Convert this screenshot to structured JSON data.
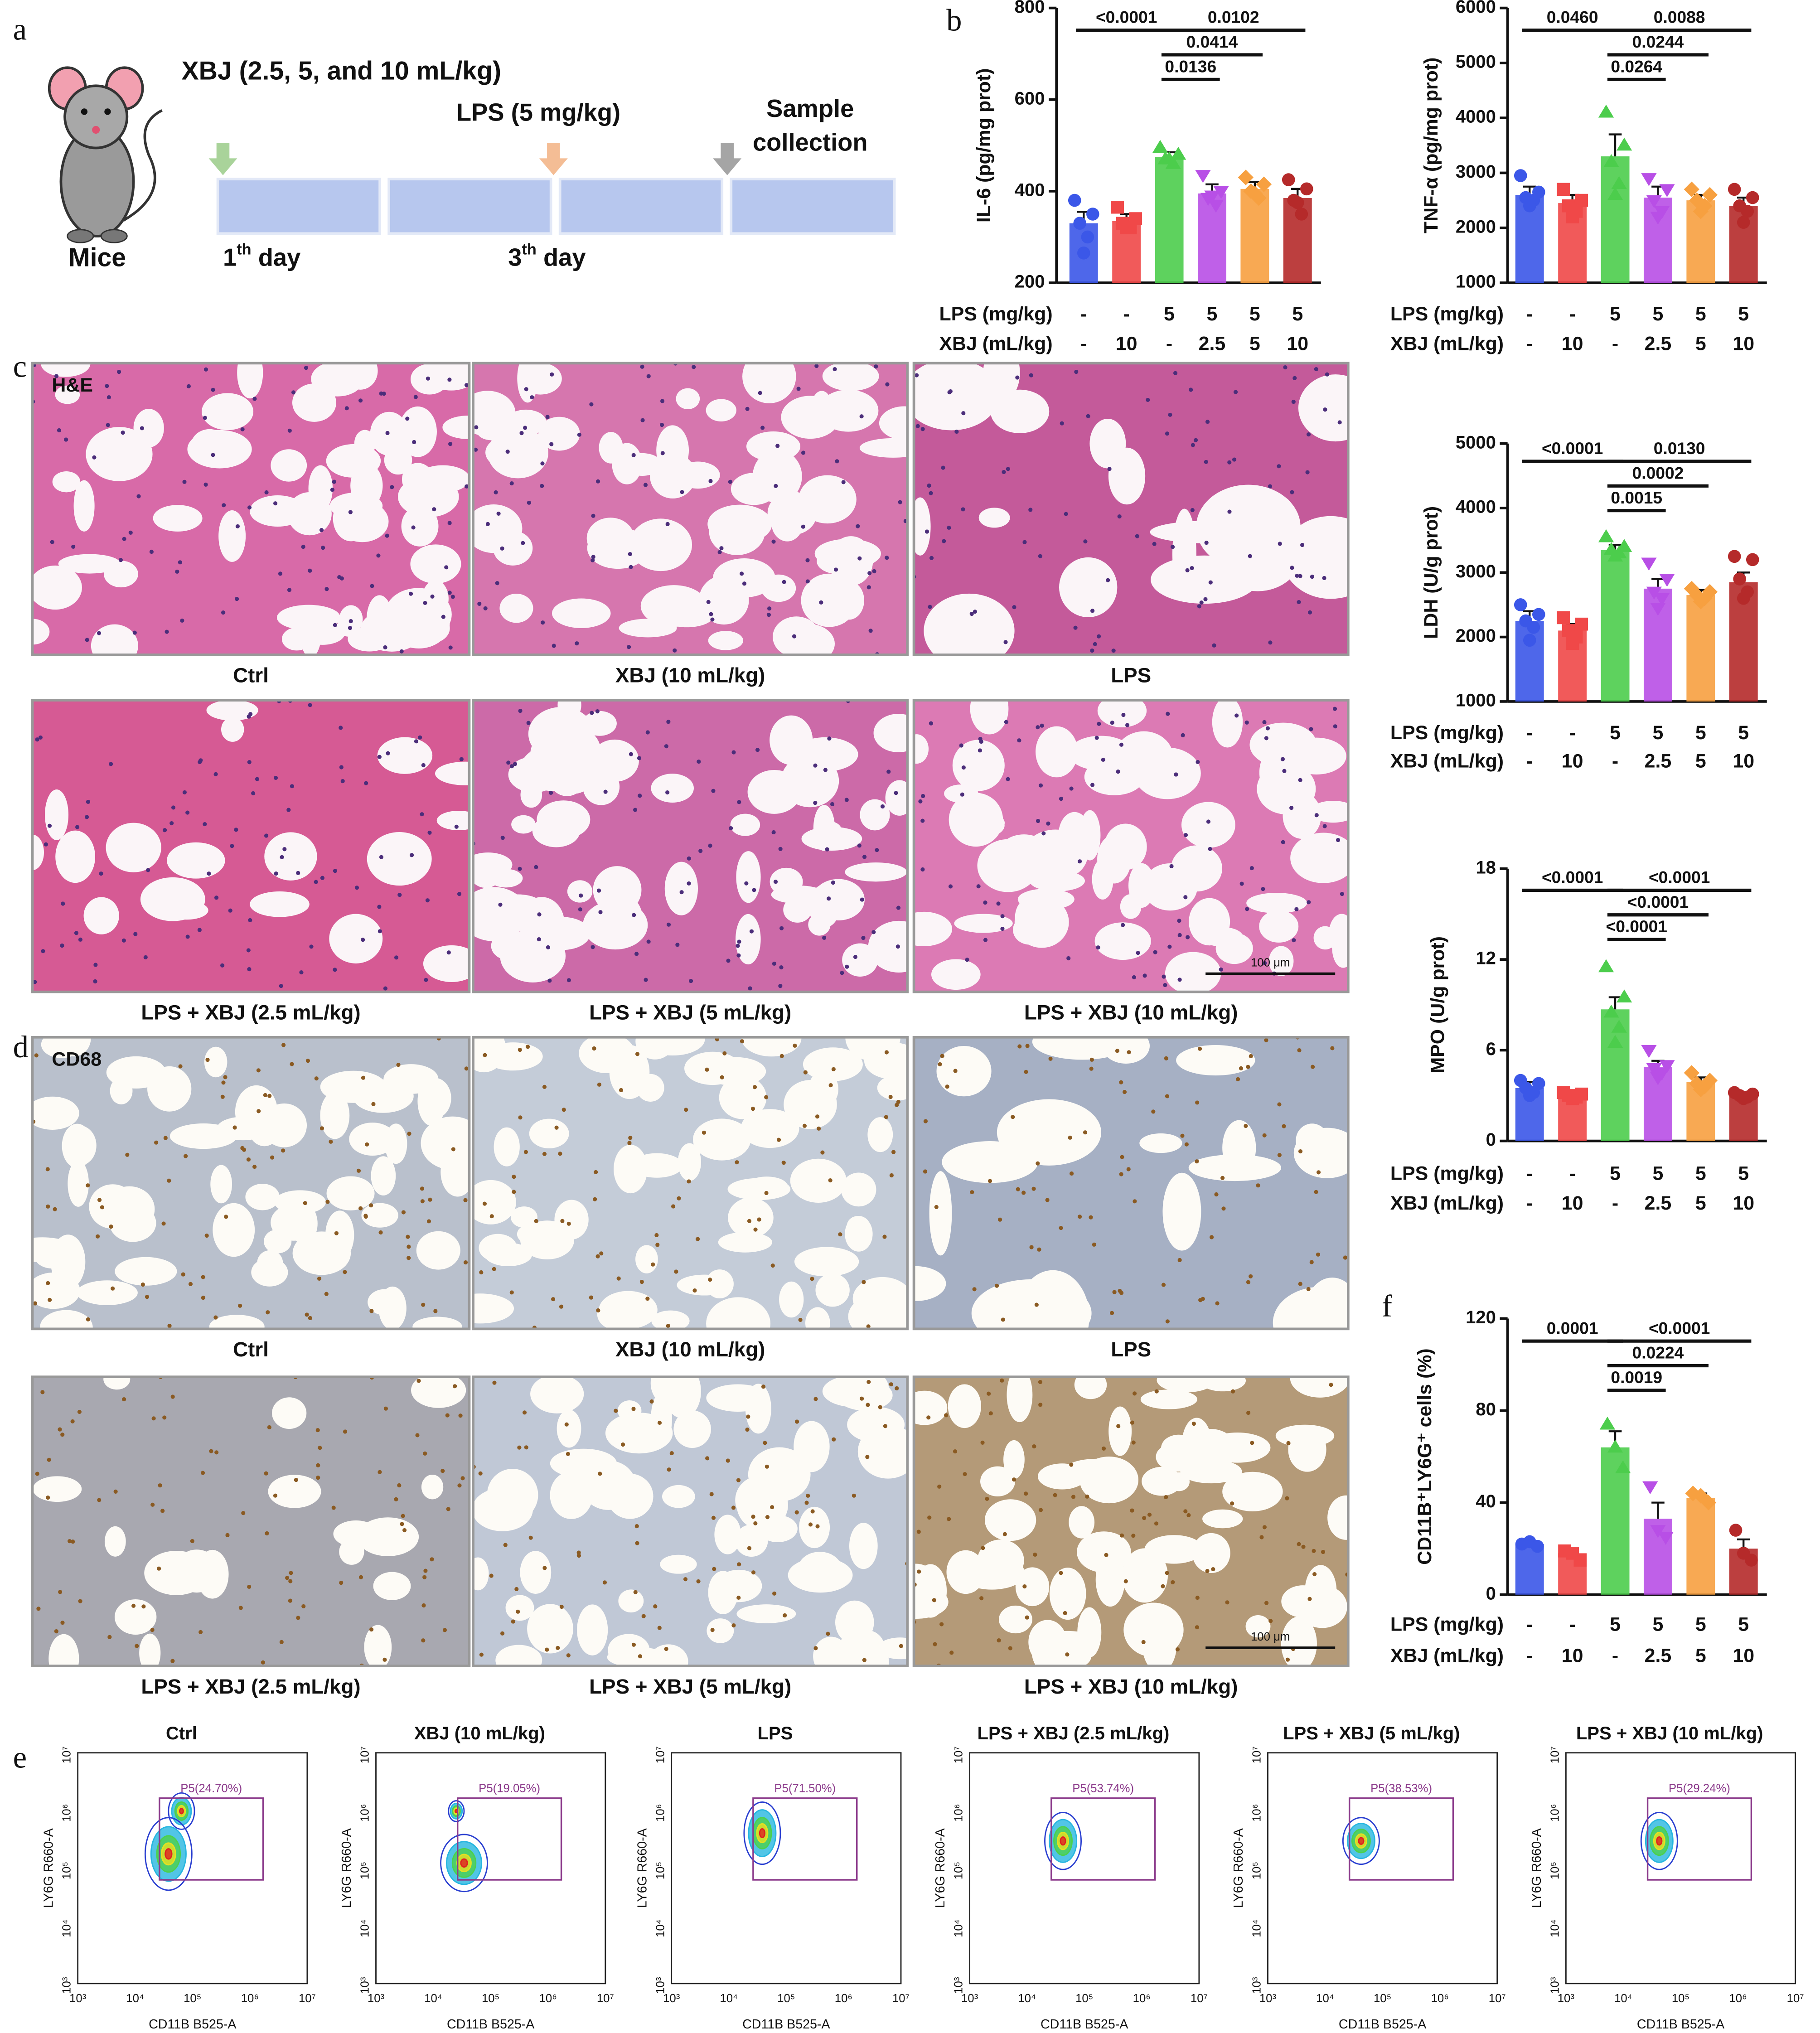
{
  "panels": [
    "a",
    "b",
    "c",
    "d",
    "e",
    "f"
  ],
  "timeline": {
    "xbj": "XBJ (2.5, 5, and 10 mL/kg)",
    "lps": "LPS (5 mg/kg)",
    "sample": [
      "Sample",
      "collection"
    ],
    "mice": "Mice",
    "days": [
      {
        "n": "1",
        "sup": "th",
        "rest": " day"
      },
      {
        "n": "3",
        "sup": "th",
        "rest": " day"
      }
    ]
  },
  "he": {
    "label": "H&E",
    "captions": [
      "Ctrl",
      "XBJ (10 mL/kg)",
      "LPS",
      "LPS + XBJ (2.5 mL/kg)",
      "LPS + XBJ (5 mL/kg)",
      "LPS + XBJ (10 mL/kg)"
    ],
    "scale": "100 μm"
  },
  "cd68": {
    "label": "CD68",
    "captions": [
      "Ctrl",
      "XBJ (10 mL/kg)",
      "LPS",
      "LPS + XBJ (2.5 mL/kg)",
      "LPS + XBJ (5 mL/kg)",
      "LPS + XBJ (10 mL/kg)"
    ],
    "scale": "100 μm"
  },
  "flow": {
    "x_label": "CD11B B525-A",
    "y_label": "LY6G R660-A",
    "ticks": [
      "10³",
      "10⁴",
      "10⁵",
      "10⁶",
      "10⁷"
    ],
    "plots": [
      {
        "title": "Ctrl",
        "gate": "P5(24.70%)"
      },
      {
        "title": "XBJ (10 mL/kg)",
        "gate": "P5(19.05%)"
      },
      {
        "title": "LPS",
        "gate": "P5(71.50%)"
      },
      {
        "title": "LPS + XBJ (2.5 mL/kg)",
        "gate": "P5(53.74%)"
      },
      {
        "title": "LPS + XBJ (5 mL/kg)",
        "gate": "P5(38.53%)"
      },
      {
        "title": "LPS + XBJ (10 mL/kg)",
        "gate": "P5(29.24%)"
      }
    ]
  },
  "chart_data": [
    {
      "type": "bar",
      "y_label": "IL-6 (pg/mg prot)",
      "ylim": [
        200,
        800
      ],
      "yticks": [
        200,
        400,
        600,
        800
      ],
      "row_labels": [
        "LPS (mg/kg)",
        "XBJ (mL/kg)"
      ],
      "rows": [
        [
          "-",
          "-",
          "5",
          "5",
          "5",
          "5"
        ],
        [
          "-",
          "10",
          "-",
          "2.5",
          "5",
          "10"
        ]
      ],
      "colors": [
        "#3b57e8",
        "#f04848",
        "#4ccd4c",
        "#b84fe6",
        "#f7a040",
        "#b52a2a"
      ],
      "values": [
        330,
        335,
        475,
        395,
        405,
        385
      ],
      "errors": [
        25,
        15,
        10,
        20,
        15,
        20
      ],
      "points": [
        [
          380,
          350,
          330,
          300,
          265
        ],
        [
          365,
          340,
          330,
          320,
          320
        ],
        [
          495,
          480,
          470,
          460,
          470
        ],
        [
          435,
          400,
          385,
          370,
          390
        ],
        [
          430,
          415,
          400,
          385,
          395
        ],
        [
          425,
          405,
          380,
          350,
          375
        ]
      ],
      "comparisons": [
        {
          "groups": [
            2,
            3
          ],
          "label": "0.0136"
        },
        {
          "groups": [
            2,
            4
          ],
          "label": "0.0414"
        },
        {
          "groups": [
            2,
            5
          ],
          "label": "0.0102"
        },
        {
          "groups": [
            0,
            2
          ],
          "label": "<0.0001"
        }
      ]
    },
    {
      "type": "bar",
      "y_label": "TNF-α (pg/mg prot)",
      "ylim": [
        1000,
        6000
      ],
      "yticks": [
        1000,
        2000,
        3000,
        4000,
        5000,
        6000
      ],
      "row_labels": [
        "LPS (mg/kg)",
        "XBJ (mL/kg)"
      ],
      "rows": [
        [
          "-",
          "-",
          "5",
          "5",
          "5",
          "5"
        ],
        [
          "-",
          "10",
          "-",
          "2.5",
          "5",
          "10"
        ]
      ],
      "colors": [
        "#3b57e8",
        "#f04848",
        "#4ccd4c",
        "#b84fe6",
        "#f7a040",
        "#b52a2a"
      ],
      "values": [
        2600,
        2450,
        3300,
        2550,
        2500,
        2400
      ],
      "errors": [
        150,
        150,
        400,
        200,
        100,
        150
      ],
      "points": [
        [
          2950,
          2650,
          2550,
          2500,
          2400
        ],
        [
          2700,
          2500,
          2400,
          2300,
          2200
        ],
        [
          4100,
          3500,
          3200,
          2800,
          2600
        ],
        [
          2900,
          2700,
          2500,
          2300,
          2200
        ],
        [
          2700,
          2600,
          2500,
          2400,
          2300
        ],
        [
          2700,
          2550,
          2400,
          2300,
          2100
        ]
      ],
      "comparisons": [
        {
          "groups": [
            2,
            3
          ],
          "label": "0.0264"
        },
        {
          "groups": [
            2,
            4
          ],
          "label": "0.0244"
        },
        {
          "groups": [
            2,
            5
          ],
          "label": "0.0088"
        },
        {
          "groups": [
            0,
            2
          ],
          "label": "0.0460"
        }
      ]
    },
    {
      "type": "bar",
      "y_label": "LDH (U/g prot)",
      "ylim": [
        1000,
        5000
      ],
      "yticks": [
        1000,
        2000,
        3000,
        4000,
        5000
      ],
      "row_labels": [
        "LPS (mg/kg)",
        "XBJ (mL/kg)"
      ],
      "rows": [
        [
          "-",
          "-",
          "5",
          "5",
          "5",
          "5"
        ],
        [
          "-",
          "10",
          "-",
          "2.5",
          "5",
          "10"
        ]
      ],
      "colors": [
        "#3b57e8",
        "#f04848",
        "#4ccd4c",
        "#b84fe6",
        "#f7a040",
        "#b52a2a"
      ],
      "values": [
        2250,
        2100,
        3350,
        2750,
        2650,
        2850
      ],
      "errors": [
        150,
        100,
        80,
        150,
        80,
        150
      ],
      "points": [
        [
          2500,
          2350,
          2250,
          2150,
          1950
        ],
        [
          2300,
          2200,
          2100,
          2000,
          1900
        ],
        [
          3550,
          3400,
          3350,
          3300,
          3250
        ],
        [
          3150,
          2900,
          2700,
          2600,
          2450
        ],
        [
          2750,
          2700,
          2650,
          2600,
          2550
        ],
        [
          3250,
          3200,
          2900,
          2700,
          2600
        ]
      ],
      "comparisons": [
        {
          "groups": [
            2,
            3
          ],
          "label": "0.0015"
        },
        {
          "groups": [
            2,
            4
          ],
          "label": "0.0002"
        },
        {
          "groups": [
            2,
            5
          ],
          "label": "0.0130"
        },
        {
          "groups": [
            0,
            2
          ],
          "label": "<0.0001"
        }
      ]
    },
    {
      "type": "bar",
      "y_label": "MPO (U/g prot)",
      "ylim": [
        0,
        18
      ],
      "yticks": [
        0,
        6,
        12,
        18
      ],
      "row_labels": [
        "LPS (mg/kg)",
        "XBJ (mL/kg)"
      ],
      "rows": [
        [
          "-",
          "-",
          "5",
          "5",
          "5",
          "5"
        ],
        [
          "-",
          "10",
          "-",
          "2.5",
          "5",
          "10"
        ]
      ],
      "colors": [
        "#3b57e8",
        "#f04848",
        "#4ccd4c",
        "#b84fe6",
        "#f7a040",
        "#b52a2a"
      ],
      "values": [
        3.5,
        3.0,
        8.7,
        4.9,
        3.9,
        3.0
      ],
      "errors": [
        0.4,
        0.2,
        0.8,
        0.4,
        0.3,
        0.1
      ],
      "points": [
        [
          4,
          3.8,
          3.5,
          3.2,
          3.0
        ],
        [
          3.2,
          3.1,
          3.0,
          2.9,
          2.8
        ],
        [
          11.5,
          9.5,
          8.5,
          7.5,
          6.5
        ],
        [
          6,
          5,
          4.8,
          4.5,
          4.2
        ],
        [
          4.5,
          4,
          3.8,
          3.6,
          3.4
        ],
        [
          3.2,
          3.1,
          3,
          2.9,
          2.8
        ]
      ],
      "comparisons": [
        {
          "groups": [
            2,
            3
          ],
          "label": "<0.0001"
        },
        {
          "groups": [
            2,
            4
          ],
          "label": "<0.0001"
        },
        {
          "groups": [
            2,
            5
          ],
          "label": "<0.0001"
        },
        {
          "groups": [
            0,
            2
          ],
          "label": "<0.0001"
        }
      ]
    },
    {
      "type": "bar",
      "y_label": "CD11B⁺LY6G⁺ cells (%)",
      "ylim": [
        0,
        120
      ],
      "yticks": [
        0,
        40,
        80,
        120
      ],
      "row_labels": [
        "LPS (mg/kg)",
        "XBJ (mL/kg)"
      ],
      "rows": [
        [
          "-",
          "-",
          "5",
          "5",
          "5",
          "5"
        ],
        [
          "-",
          "10",
          "-",
          "2.5",
          "5",
          "10"
        ]
      ],
      "colors": [
        "#3b57e8",
        "#f04848",
        "#4ccd4c",
        "#b84fe6",
        "#f7a040",
        "#b52a2a"
      ],
      "values": [
        22,
        18,
        64,
        33,
        42,
        20
      ],
      "errors": [
        1,
        2,
        7,
        7,
        2,
        4
      ],
      "points": [
        [
          22,
          23,
          21
        ],
        [
          19,
          18,
          15
        ],
        [
          74,
          64,
          55
        ],
        [
          47,
          28,
          25
        ],
        [
          44,
          43,
          40
        ],
        [
          28,
          18,
          15
        ]
      ],
      "comparisons": [
        {
          "groups": [
            2,
            3
          ],
          "label": "0.0019"
        },
        {
          "groups": [
            2,
            4
          ],
          "label": "0.0224"
        },
        {
          "groups": [
            2,
            5
          ],
          "label": "<0.0001"
        },
        {
          "groups": [
            0,
            2
          ],
          "label": "0.0001"
        }
      ]
    }
  ]
}
